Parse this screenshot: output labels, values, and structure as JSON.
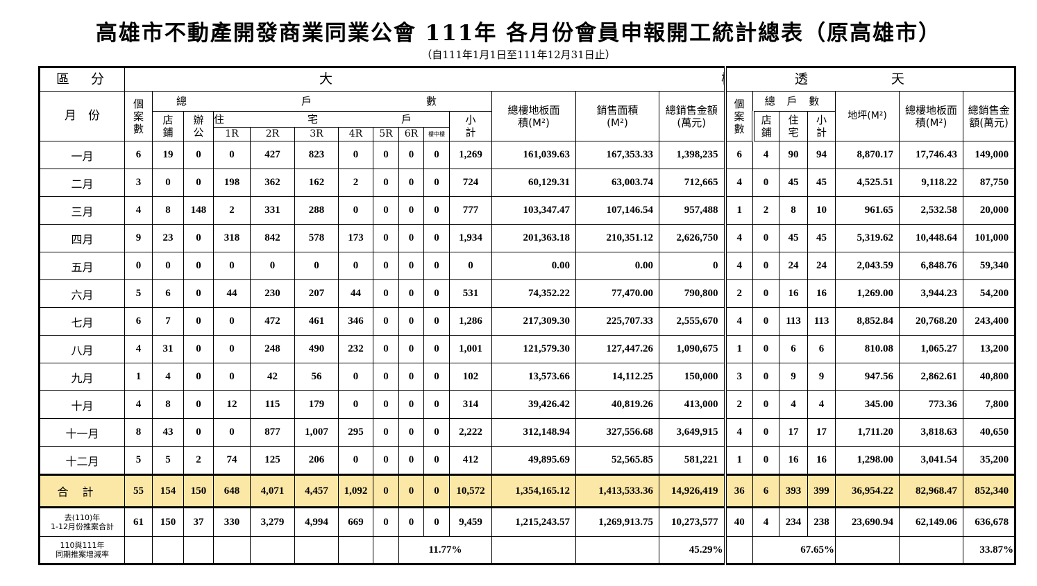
{
  "title": "高雄市不動產開發商業同業公會 111年 各月份會員申報開工統計總表（原高雄市）",
  "subtitle": "（自111年1月1日至111年12月31日止）",
  "headers": {
    "region": "區　分",
    "building": "大樓",
    "townhouse": "透天",
    "month": "月　份",
    "cases": "個案數",
    "total_units": "總　　戶　　數",
    "shop": "店鋪",
    "office": "辦公",
    "residential": "住　　宅　　戶　　房　　數",
    "subtotal": "小計",
    "rooms": [
      "1R",
      "2R",
      "3R",
      "4R",
      "5R",
      "6R",
      "樓中樓"
    ],
    "floor_area": "總樓地板面積(M²)",
    "sales_area": "銷售面積(M²)",
    "sales_amount": "總銷售金額(萬元)",
    "t_cases": "個案數",
    "t_total_units": "總 戶 數",
    "t_shop": "店鋪",
    "t_residence": "住宅",
    "t_subtotal": "小計",
    "t_land": "地坪(M²)",
    "t_floor_area": "總樓地板面積(M²)",
    "t_sales_amount": "總銷售金額(萬元)"
  },
  "rows": [
    {
      "month": "一月",
      "values": [
        "6",
        "19",
        "0",
        "0",
        "427",
        "823",
        "0",
        "0",
        "0",
        "0",
        "1,269",
        "161,039.63",
        "167,353.33",
        "1,398,235",
        "6",
        "4",
        "90",
        "94",
        "8,870.17",
        "17,746.43",
        "149,000"
      ]
    },
    {
      "month": "二月",
      "values": [
        "3",
        "0",
        "0",
        "198",
        "362",
        "162",
        "2",
        "0",
        "0",
        "0",
        "724",
        "60,129.31",
        "63,003.74",
        "712,665",
        "4",
        "0",
        "45",
        "45",
        "4,525.51",
        "9,118.22",
        "87,750"
      ]
    },
    {
      "month": "三月",
      "values": [
        "4",
        "8",
        "148",
        "2",
        "331",
        "288",
        "0",
        "0",
        "0",
        "0",
        "777",
        "103,347.47",
        "107,146.54",
        "957,488",
        "1",
        "2",
        "8",
        "10",
        "961.65",
        "2,532.58",
        "20,000"
      ]
    },
    {
      "month": "四月",
      "values": [
        "9",
        "23",
        "0",
        "318",
        "842",
        "578",
        "173",
        "0",
        "0",
        "0",
        "1,934",
        "201,363.18",
        "210,351.12",
        "2,626,750",
        "4",
        "0",
        "45",
        "45",
        "5,319.62",
        "10,448.64",
        "101,000"
      ]
    },
    {
      "month": "五月",
      "values": [
        "0",
        "0",
        "0",
        "0",
        "0",
        "0",
        "0",
        "0",
        "0",
        "0",
        "0",
        "0.00",
        "0.00",
        "0",
        "4",
        "0",
        "24",
        "24",
        "2,043.59",
        "6,848.76",
        "59,340"
      ]
    },
    {
      "month": "六月",
      "values": [
        "5",
        "6",
        "0",
        "44",
        "230",
        "207",
        "44",
        "0",
        "0",
        "0",
        "531",
        "74,352.22",
        "77,470.00",
        "790,800",
        "2",
        "0",
        "16",
        "16",
        "1,269.00",
        "3,944.23",
        "54,200"
      ]
    },
    {
      "month": "七月",
      "values": [
        "6",
        "7",
        "0",
        "0",
        "472",
        "461",
        "346",
        "0",
        "0",
        "0",
        "1,286",
        "217,309.30",
        "225,707.33",
        "2,555,670",
        "4",
        "0",
        "113",
        "113",
        "8,852.84",
        "20,768.20",
        "243,400"
      ]
    },
    {
      "month": "八月",
      "values": [
        "4",
        "31",
        "0",
        "0",
        "248",
        "490",
        "232",
        "0",
        "0",
        "0",
        "1,001",
        "121,579.30",
        "127,447.26",
        "1,090,675",
        "1",
        "0",
        "6",
        "6",
        "810.08",
        "1,065.27",
        "13,200"
      ]
    },
    {
      "month": "九月",
      "values": [
        "1",
        "4",
        "0",
        "0",
        "42",
        "56",
        "0",
        "0",
        "0",
        "0",
        "102",
        "13,573.66",
        "14,112.25",
        "150,000",
        "3",
        "0",
        "9",
        "9",
        "947.56",
        "2,862.61",
        "40,800"
      ]
    },
    {
      "month": "十月",
      "values": [
        "4",
        "8",
        "0",
        "12",
        "115",
        "179",
        "0",
        "0",
        "0",
        "0",
        "314",
        "39,426.42",
        "40,819.26",
        "413,000",
        "2",
        "0",
        "4",
        "4",
        "345.00",
        "773.36",
        "7,800"
      ]
    },
    {
      "month": "十一月",
      "values": [
        "8",
        "43",
        "0",
        "0",
        "877",
        "1,007",
        "295",
        "0",
        "0",
        "0",
        "2,222",
        "312,148.94",
        "327,556.68",
        "3,649,915",
        "4",
        "0",
        "17",
        "17",
        "1,711.20",
        "3,818.63",
        "40,650"
      ]
    },
    {
      "month": "十二月",
      "values": [
        "5",
        "5",
        "2",
        "74",
        "125",
        "206",
        "0",
        "0",
        "0",
        "0",
        "412",
        "49,895.69",
        "52,565.85",
        "581,221",
        "1",
        "0",
        "16",
        "16",
        "1,298.00",
        "3,041.54",
        "35,200"
      ]
    }
  ],
  "total": {
    "label": "合計",
    "values": [
      "55",
      "154",
      "150",
      "648",
      "4,071",
      "4,457",
      "1,092",
      "0",
      "0",
      "0",
      "10,572",
      "1,354,165.12",
      "1,413,533.36",
      "14,926,419",
      "36",
      "6",
      "393",
      "399",
      "36,954.22",
      "82,968.47",
      "852,340"
    ]
  },
  "previous": {
    "label_line1": "去(110)年",
    "label_line2": "1-12月份推案合計",
    "values": [
      "61",
      "150",
      "37",
      "330",
      "3,279",
      "4,994",
      "669",
      "0",
      "0",
      "0",
      "9,459",
      "1,215,243.57",
      "1,269,913.75",
      "10,273,577",
      "40",
      "4",
      "234",
      "238",
      "23,690.94",
      "62,149.06",
      "636,678"
    ]
  },
  "rate": {
    "label_line1": "110與111年",
    "label_line2": "同期推案增減率",
    "building_units": "11.77%",
    "building_amount": "45.29%",
    "townhouse_units": "67.65%",
    "townhouse_amount": "33.87%"
  },
  "colors": {
    "total_row_bg": "#fce8a6"
  }
}
